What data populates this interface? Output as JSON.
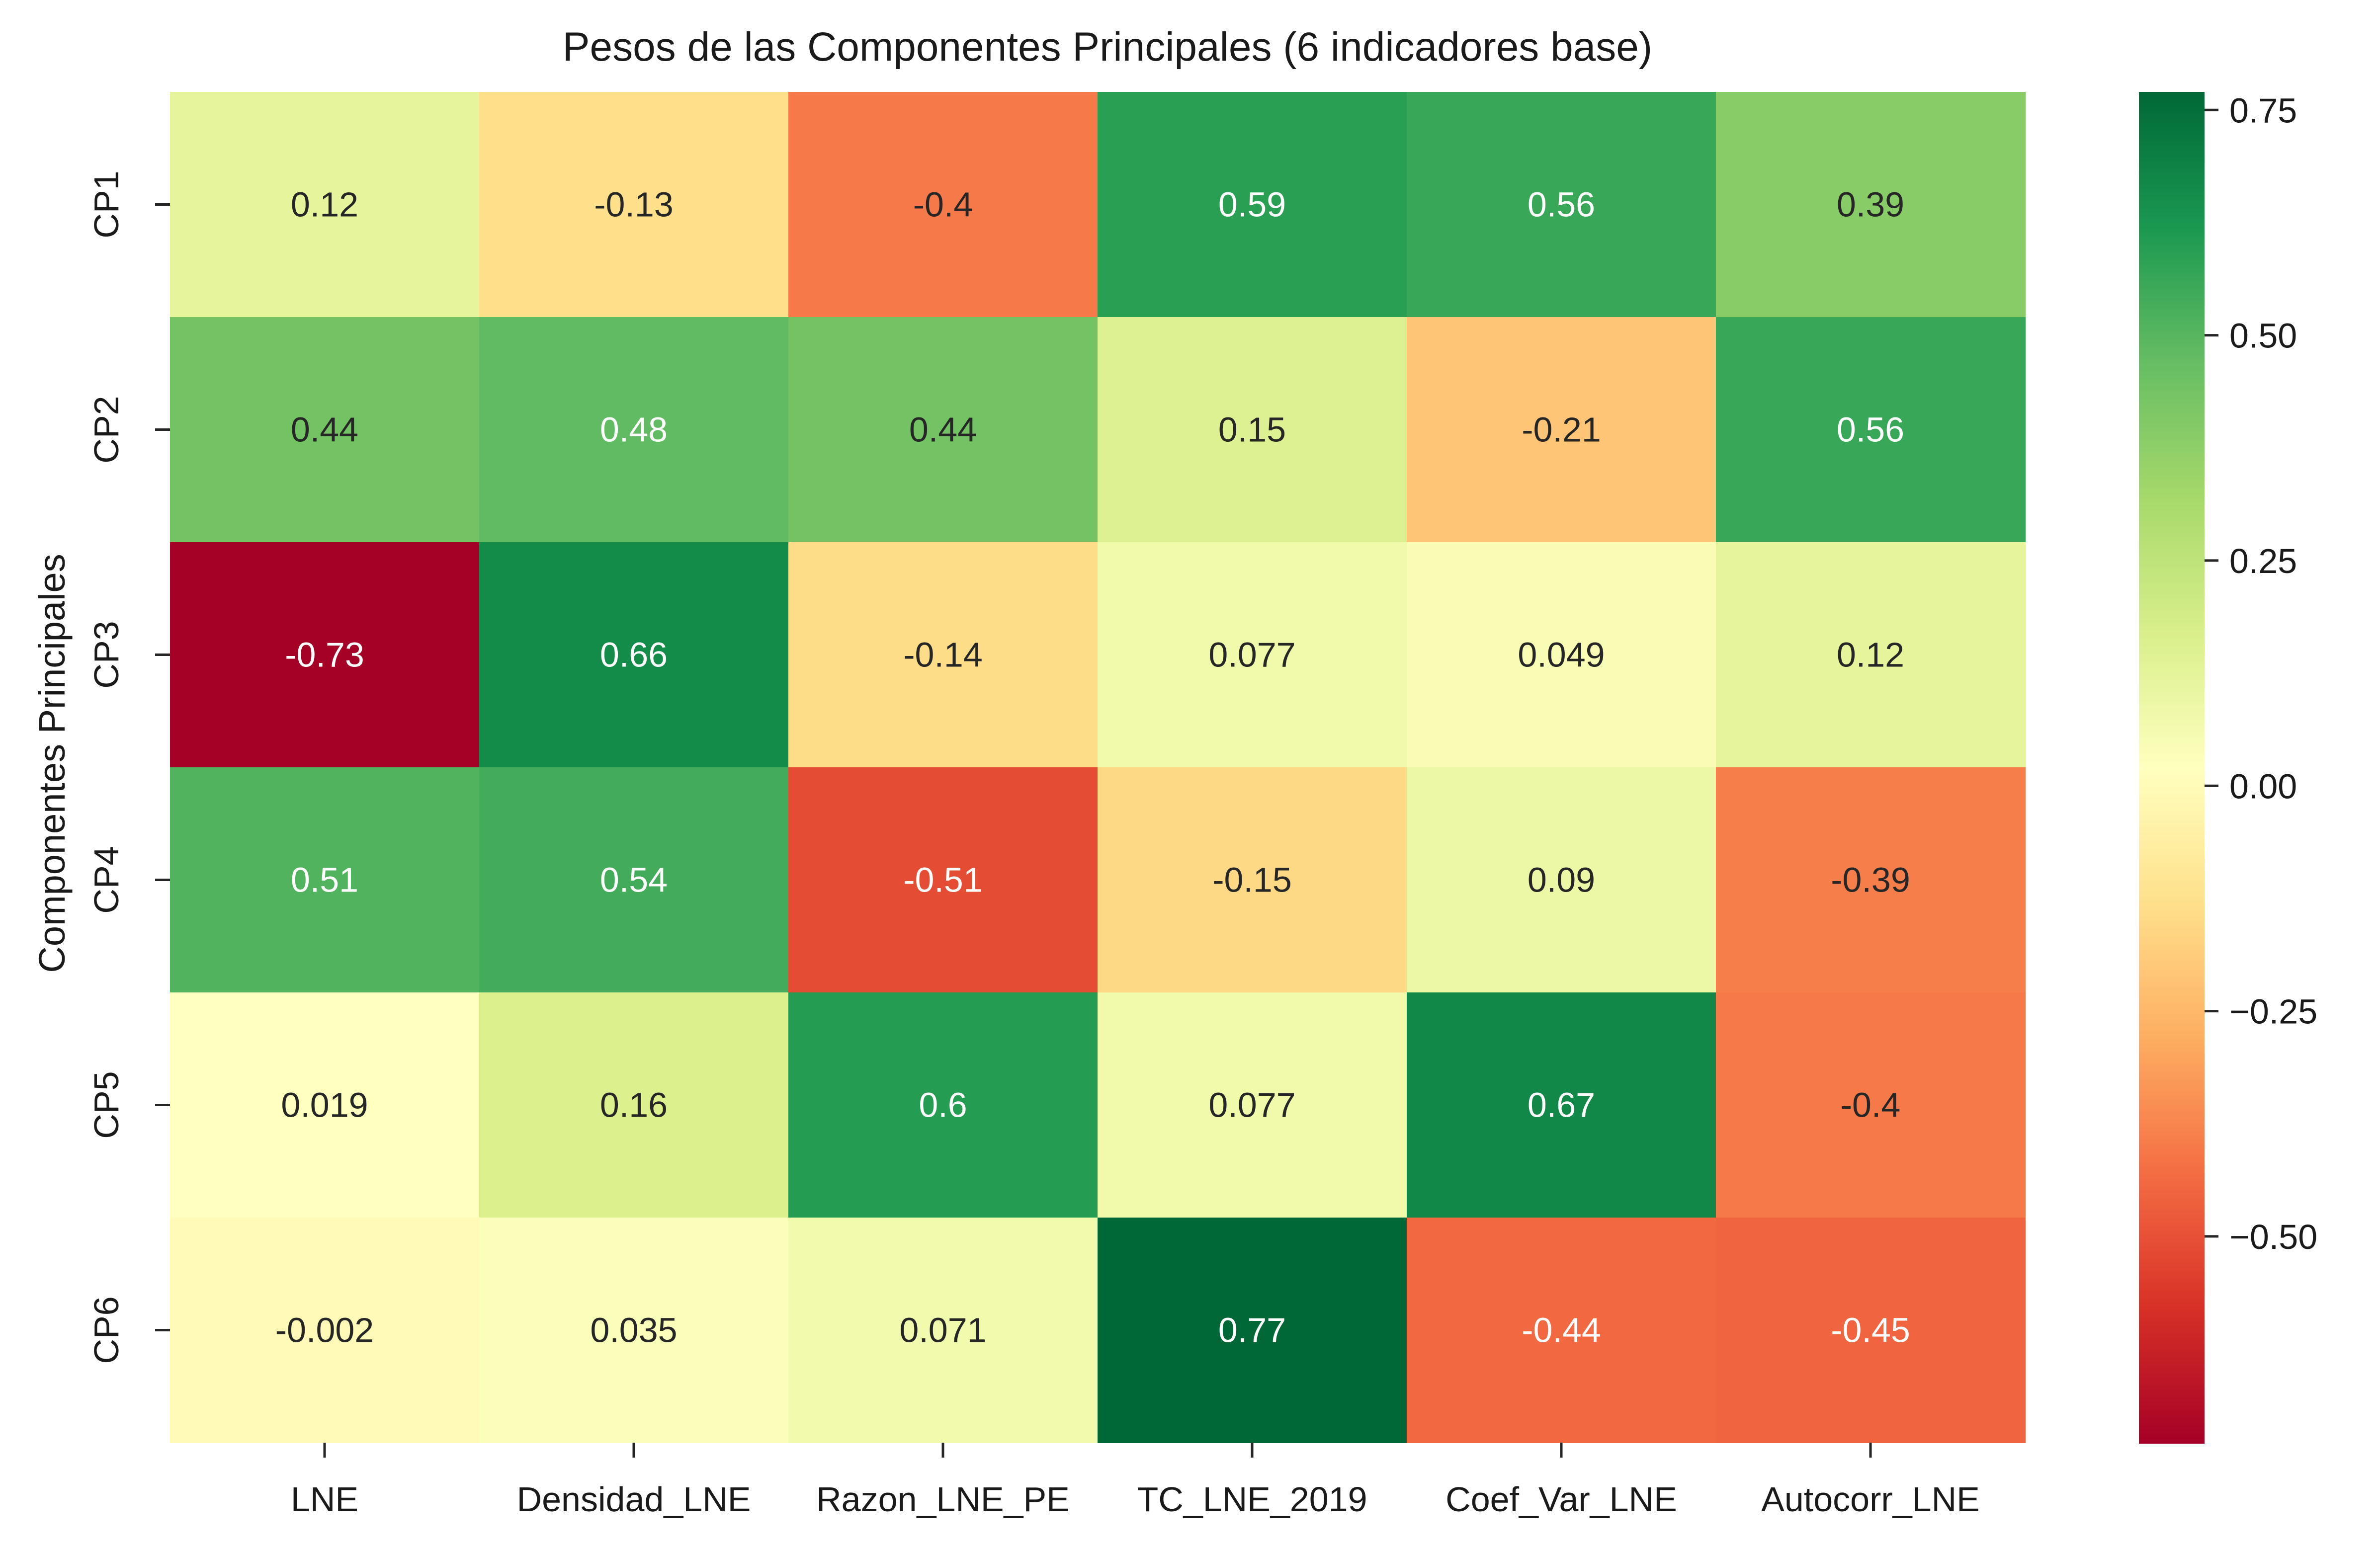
{
  "chart_data": {
    "type": "heatmap",
    "title": "Pesos de las Componentes Principales (6 indicadores base)",
    "xlabel": "",
    "ylabel": "Componentes Principales",
    "columns": [
      "LNE",
      "Densidad_LNE",
      "Razon_LNE_PE",
      "TC_LNE_2019",
      "Coef_Var_LNE",
      "Autocorr_LNE"
    ],
    "rows": [
      "CP1",
      "CP2",
      "CP3",
      "CP4",
      "CP5",
      "CP6"
    ],
    "values": [
      [
        0.12,
        -0.13,
        -0.4,
        0.59,
        0.56,
        0.39
      ],
      [
        0.44,
        0.48,
        0.44,
        0.15,
        -0.21,
        0.56
      ],
      [
        -0.73,
        0.66,
        -0.14,
        0.077,
        0.049,
        0.12
      ],
      [
        0.51,
        0.54,
        -0.51,
        -0.15,
        0.09,
        -0.39
      ],
      [
        0.019,
        0.16,
        0.6,
        0.077,
        0.67,
        -0.4
      ],
      [
        -0.002,
        0.035,
        0.071,
        0.77,
        -0.44,
        -0.45
      ]
    ],
    "labels": [
      [
        "0.12",
        "-0.13",
        "-0.4",
        "0.59",
        "0.56",
        "0.39"
      ],
      [
        "0.44",
        "0.48",
        "0.44",
        "0.15",
        "-0.21",
        "0.56"
      ],
      [
        "-0.73",
        "0.66",
        "-0.14",
        "0.077",
        "0.049",
        "0.12"
      ],
      [
        "0.51",
        "0.54",
        "-0.51",
        "-0.15",
        "0.09",
        "-0.39"
      ],
      [
        "0.019",
        "0.16",
        "0.6",
        "0.077",
        "0.67",
        "-0.4"
      ],
      [
        "-0.002",
        "0.035",
        "0.071",
        "0.77",
        "-0.44",
        "-0.45"
      ]
    ],
    "colormap": "RdYlGn",
    "vmin": -0.73,
    "vmax": 0.77,
    "colorbar_ticks": [
      0.75,
      0.5,
      0.25,
      0.0,
      -0.25,
      -0.5
    ],
    "colorbar_tick_labels": [
      "0.75",
      "0.50",
      "0.25",
      "0.00",
      "−0.25",
      "−0.50"
    ],
    "grid": false,
    "legend": "colorbar right"
  }
}
